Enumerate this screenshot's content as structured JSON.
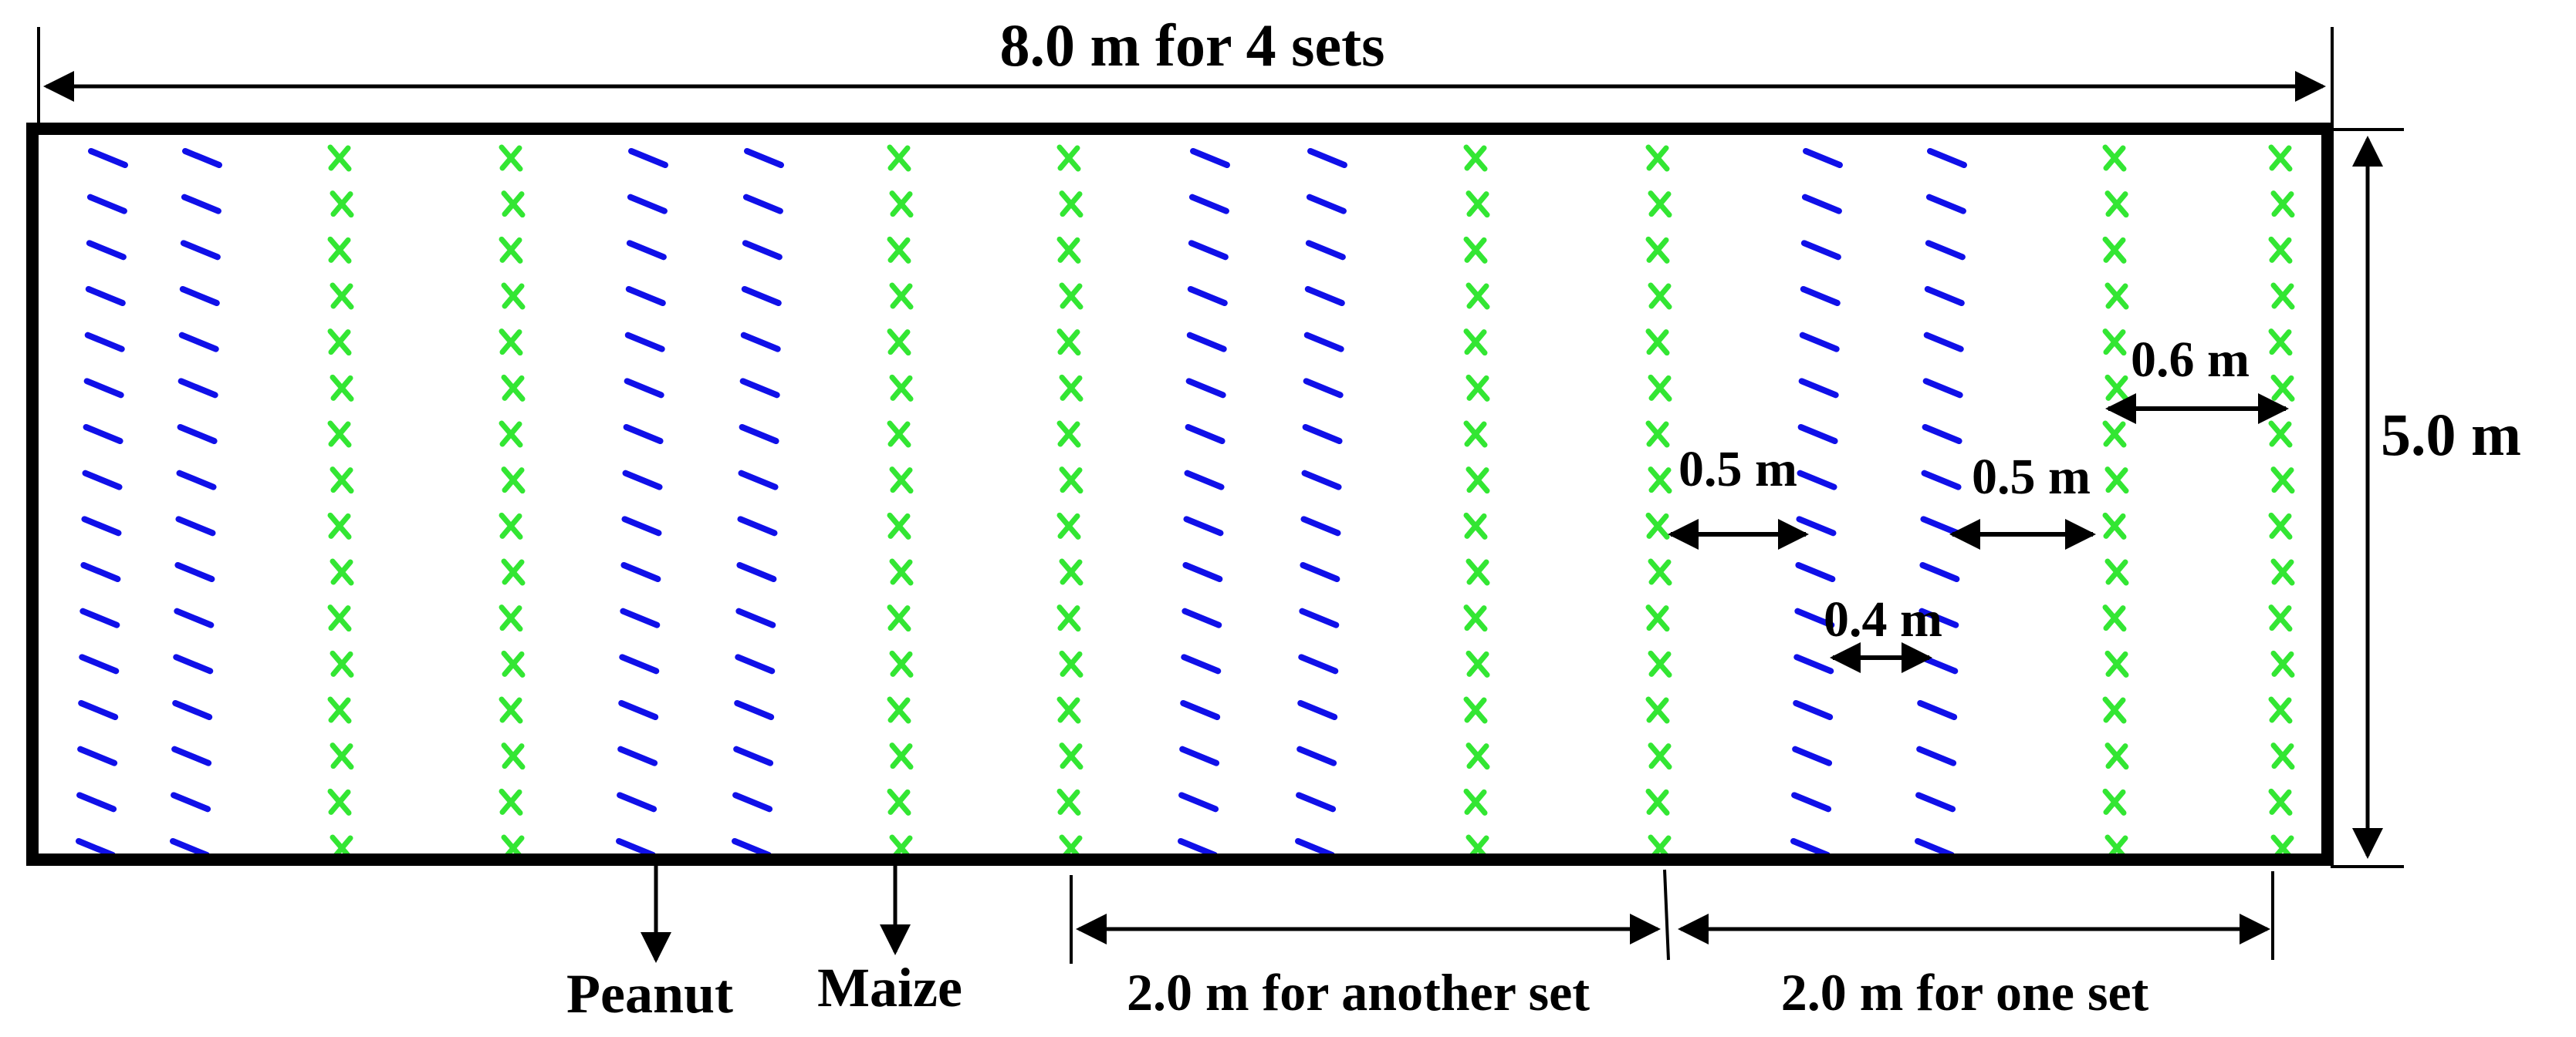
{
  "labels": {
    "total_width": "8.0 m for 4 sets",
    "height": "5.0 m",
    "peanut": "Peanut",
    "maize": "Maize",
    "another_set": "2.0 m for another set",
    "one_set": "2.0 m for one set",
    "gap_maize_peanut_left": "0.5 m",
    "gap_peanut_maize_right": "0.5 m",
    "gap_peanut_peanut": "0.4 m",
    "gap_maize_maize": "0.6 m"
  },
  "colors": {
    "peanut": "#1010e8",
    "maize": "#33e633",
    "border": "#000000"
  },
  "icons": {
    "peanut": "dash-mark",
    "maize": "cross-mark"
  },
  "rows": [
    {
      "crop": "peanut"
    },
    {
      "crop": "peanut"
    },
    {
      "crop": "maize"
    },
    {
      "crop": "maize"
    },
    {
      "crop": "peanut"
    },
    {
      "crop": "peanut"
    },
    {
      "crop": "maize"
    },
    {
      "crop": "maize"
    },
    {
      "crop": "peanut"
    },
    {
      "crop": "peanut"
    },
    {
      "crop": "maize"
    },
    {
      "crop": "maize"
    },
    {
      "crop": "peanut"
    },
    {
      "crop": "peanut"
    },
    {
      "crop": "maize"
    },
    {
      "crop": "maize"
    }
  ]
}
